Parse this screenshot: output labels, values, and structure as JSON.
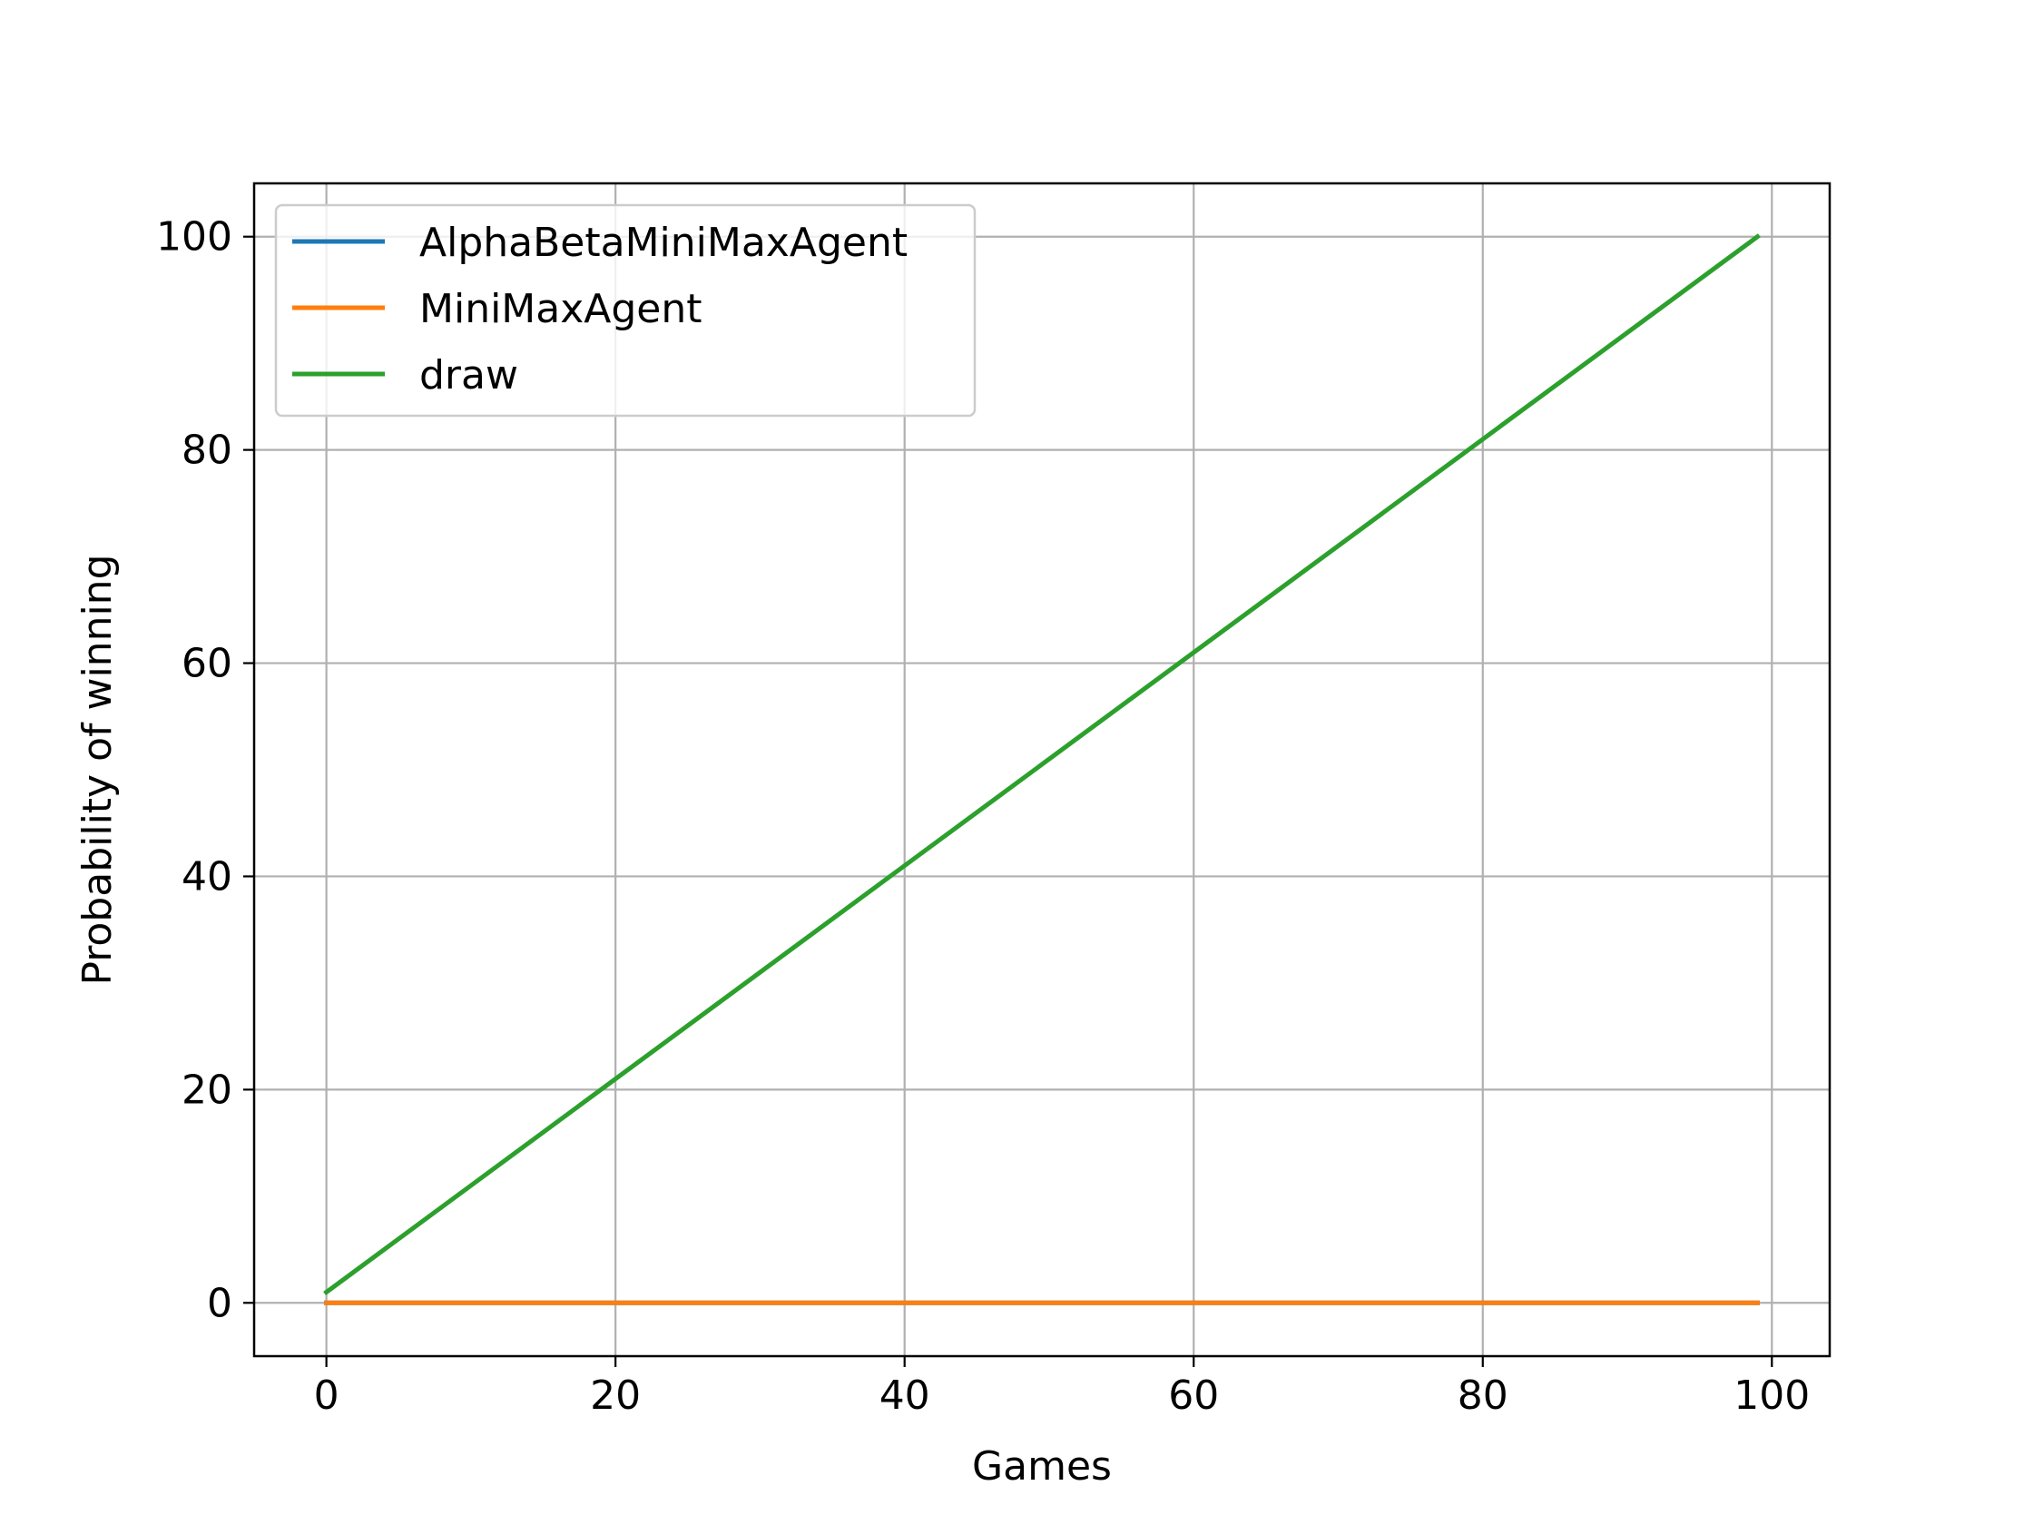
{
  "chart_data": {
    "type": "line",
    "title": "",
    "xlabel": "Games",
    "ylabel": "Probability of winning",
    "xlim": [
      -5,
      104
    ],
    "ylim": [
      -5,
      105
    ],
    "xticks": [
      0,
      20,
      40,
      60,
      80,
      100
    ],
    "yticks": [
      0,
      20,
      40,
      60,
      80,
      100
    ],
    "grid": true,
    "legend_position": "upper left",
    "series": [
      {
        "name": "AlphaBetaMiniMaxAgent",
        "color": "#1f77b4",
        "x": [
          0,
          99
        ],
        "values": [
          0,
          0
        ]
      },
      {
        "name": "MiniMaxAgent",
        "color": "#ff7f0e",
        "x": [
          0,
          99
        ],
        "values": [
          0,
          0
        ]
      },
      {
        "name": "draw",
        "color": "#2ca02c",
        "x": [
          0,
          99
        ],
        "values": [
          1,
          100
        ]
      }
    ]
  }
}
